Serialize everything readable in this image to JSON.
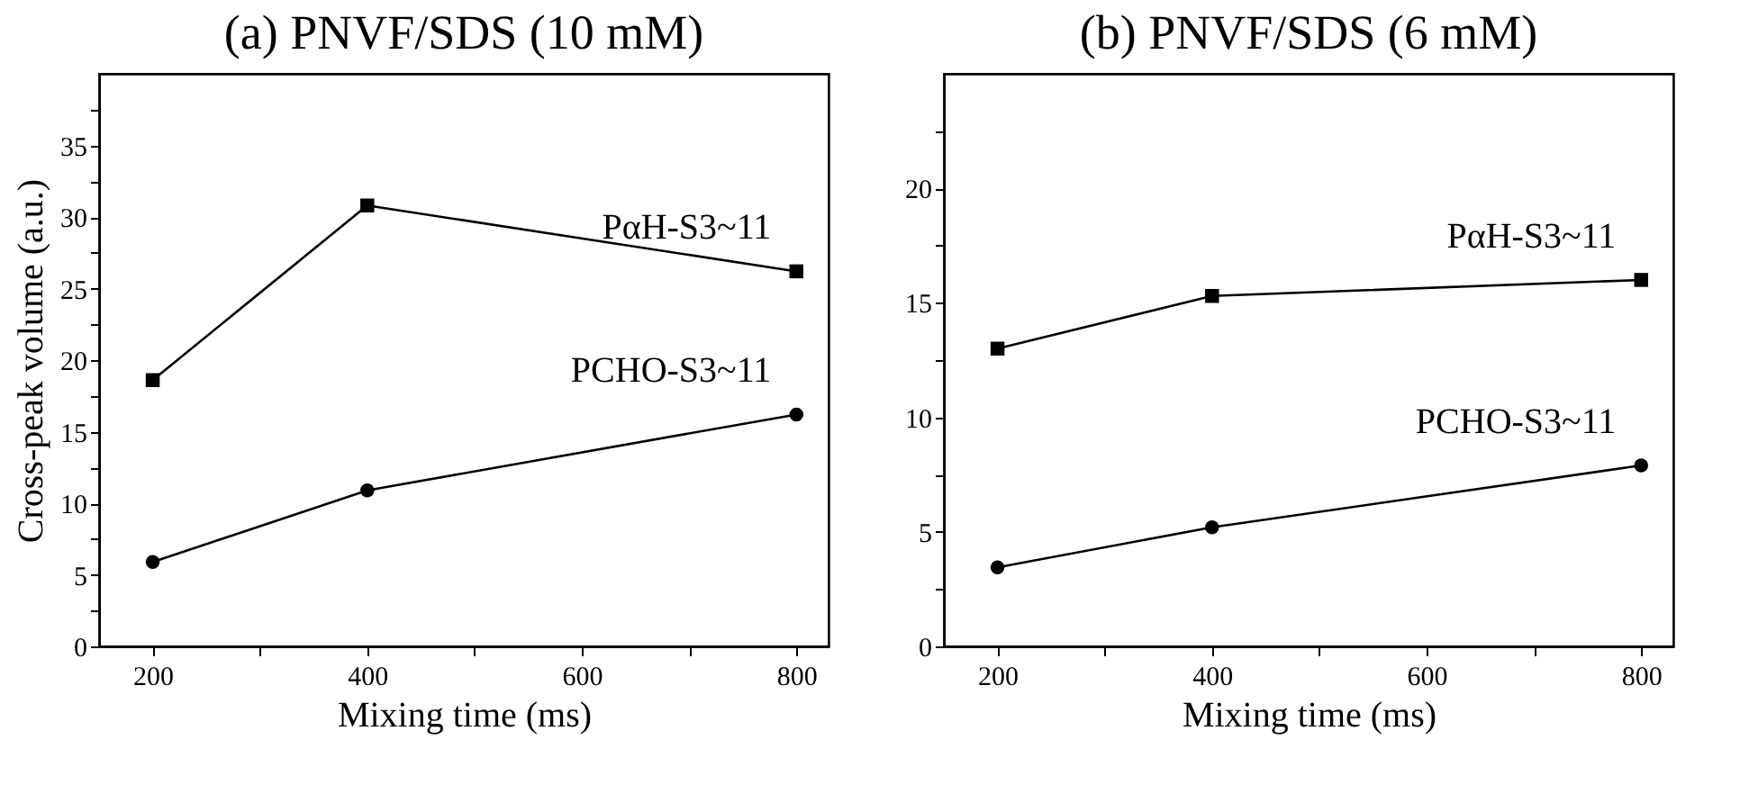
{
  "chart_data": [
    {
      "type": "line",
      "title": "(a) PNVF/SDS (10 mM)",
      "xlabel": "Mixing time (ms)",
      "ylabel": "Cross-peak volume (a.u.)",
      "x": [
        200,
        400,
        800
      ],
      "xlim": [
        150,
        830
      ],
      "xticks": [
        200,
        {
          "value": 300,
          "label": null
        },
        400,
        {
          "value": 500,
          "label": null
        },
        600,
        {
          "value": 700,
          "label": null
        },
        800
      ],
      "ylim": [
        0,
        40
      ],
      "yticks": [
        0,
        {
          "value": 2.5,
          "label": null
        },
        5,
        {
          "value": 7.5,
          "label": null
        },
        10,
        {
          "value": 12.5,
          "label": null
        },
        15,
        {
          "value": 17.5,
          "label": null
        },
        20,
        {
          "value": 22.5,
          "label": null
        },
        25,
        {
          "value": 27.5,
          "label": null
        },
        30,
        {
          "value": 32.5,
          "label": null
        },
        35,
        {
          "value": 37.5,
          "label": null
        }
      ],
      "grid": false,
      "legend": false,
      "series": [
        {
          "name": "PαH-S3~11",
          "color": "#000000",
          "marker": "square",
          "values": [
            18.6,
            30.8,
            26.2
          ]
        },
        {
          "name": "PCHO-S3~11",
          "color": "#000000",
          "marker": "circle",
          "values": [
            5.9,
            10.9,
            16.2
          ]
        }
      ]
    },
    {
      "type": "line",
      "title": "(b) PNVF/SDS (6 mM)",
      "xlabel": "Mixing time (ms)",
      "x": [
        200,
        400,
        800
      ],
      "xlim": [
        150,
        830
      ],
      "xticks": [
        200,
        {
          "value": 300,
          "label": null
        },
        400,
        {
          "value": 500,
          "label": null
        },
        600,
        {
          "value": 700,
          "label": null
        },
        800
      ],
      "ylim": [
        0,
        25
      ],
      "yticks": [
        0,
        {
          "value": 2.5,
          "label": null
        },
        5,
        {
          "value": 7.5,
          "label": null
        },
        10,
        {
          "value": 12.5,
          "label": null
        },
        15,
        {
          "value": 17.5,
          "label": null
        },
        20,
        {
          "value": 22.5,
          "label": null
        }
      ],
      "grid": false,
      "legend": false,
      "series": [
        {
          "name": "PαH-S3~11",
          "color": "#000000",
          "marker": "square",
          "values": [
            13.0,
            15.3,
            16.0
          ]
        },
        {
          "name": "PCHO-S3~11",
          "color": "#000000",
          "marker": "circle",
          "values": [
            3.45,
            5.2,
            7.9
          ]
        }
      ]
    }
  ]
}
